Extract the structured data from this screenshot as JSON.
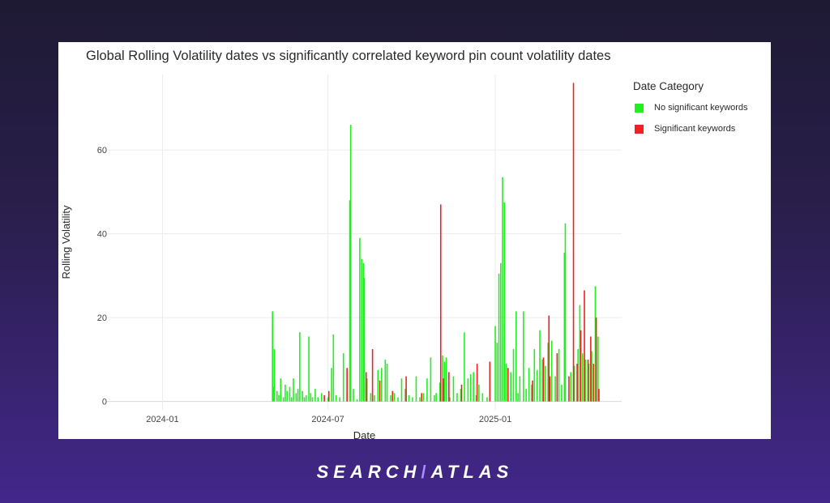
{
  "brand": {
    "logo_text": "SEARCH/ATLAS",
    "part1": "SEARCH",
    "slash": "/",
    "part2": "ATLAS"
  },
  "chart_data": {
    "type": "bar",
    "title": "Global Rolling Volatility dates vs significantly correlated keyword pin count volatility dates",
    "xlabel": "Date",
    "ylabel": "Rolling Volatility",
    "x_ticks": [
      "2024-01",
      "2024-07",
      "2025-01"
    ],
    "y_ticks": [
      0,
      20,
      40,
      60
    ],
    "xlim": [
      "2023-11-01",
      "2025-05-20"
    ],
    "ylim": [
      -2,
      78
    ],
    "grid": true,
    "legend": {
      "title": "Date Category",
      "placement": "right",
      "entries": [
        {
          "name": "No significant keywords",
          "color": "#22ee22"
        },
        {
          "name": "Significant keywords",
          "color": "#ee2222"
        }
      ]
    },
    "series": [
      {
        "name": "No significant keywords",
        "color": "#22ee22",
        "points": [
          [
            "2024-05-01",
            21.5
          ],
          [
            "2024-05-02",
            3.5
          ],
          [
            "2024-05-03",
            12.5
          ],
          [
            "2024-05-06",
            2.5
          ],
          [
            "2024-05-08",
            1.5
          ],
          [
            "2024-05-10",
            5.5
          ],
          [
            "2024-05-13",
            1.0
          ],
          [
            "2024-05-15",
            4.0
          ],
          [
            "2024-05-17",
            2.5
          ],
          [
            "2024-05-20",
            3.5
          ],
          [
            "2024-05-22",
            1.0
          ],
          [
            "2024-05-24",
            5.5
          ],
          [
            "2024-05-27",
            2.0
          ],
          [
            "2024-05-29",
            3.0
          ],
          [
            "2024-05-31",
            16.5
          ],
          [
            "2024-06-03",
            2.5
          ],
          [
            "2024-06-05",
            1.0
          ],
          [
            "2024-06-07",
            1.5
          ],
          [
            "2024-06-10",
            15.5
          ],
          [
            "2024-06-12",
            2.0
          ],
          [
            "2024-06-14",
            1.0
          ],
          [
            "2024-06-17",
            3.0
          ],
          [
            "2024-06-20",
            1.0
          ],
          [
            "2024-06-24",
            2.0
          ],
          [
            "2024-07-01",
            1.0
          ],
          [
            "2024-07-05",
            8.0
          ],
          [
            "2024-07-07",
            16.0
          ],
          [
            "2024-07-10",
            1.5
          ],
          [
            "2024-07-14",
            1.0
          ],
          [
            "2024-07-18",
            11.5
          ],
          [
            "2024-07-22",
            2.0
          ],
          [
            "2024-07-25",
            48.0
          ],
          [
            "2024-07-26",
            66.0
          ],
          [
            "2024-07-29",
            3.0
          ],
          [
            "2024-08-02",
            0.5
          ],
          [
            "2024-08-05",
            39.0
          ],
          [
            "2024-08-07",
            34.0
          ],
          [
            "2024-08-09",
            33.0
          ],
          [
            "2024-08-10",
            29.5
          ],
          [
            "2024-08-13",
            5.5
          ],
          [
            "2024-08-17",
            2.0
          ],
          [
            "2024-08-21",
            1.5
          ],
          [
            "2024-08-25",
            7.5
          ],
          [
            "2024-08-29",
            8.0
          ],
          [
            "2024-09-02",
            10.0
          ],
          [
            "2024-09-04",
            9.0
          ],
          [
            "2024-09-08",
            1.5
          ],
          [
            "2024-09-12",
            2.0
          ],
          [
            "2024-09-16",
            1.0
          ],
          [
            "2024-09-20",
            5.5
          ],
          [
            "2024-09-24",
            3.0
          ],
          [
            "2024-09-28",
            1.5
          ],
          [
            "2024-10-02",
            1.0
          ],
          [
            "2024-10-06",
            6.0
          ],
          [
            "2024-10-10",
            1.0
          ],
          [
            "2024-10-14",
            2.0
          ],
          [
            "2024-10-18",
            5.5
          ],
          [
            "2024-10-22",
            10.5
          ],
          [
            "2024-10-26",
            1.5
          ],
          [
            "2024-10-28",
            2.0
          ],
          [
            "2024-11-01",
            4.5
          ],
          [
            "2024-11-04",
            11.0
          ],
          [
            "2024-11-06",
            9.5
          ],
          [
            "2024-11-08",
            10.5
          ],
          [
            "2024-11-12",
            1.0
          ],
          [
            "2024-11-16",
            6.0
          ],
          [
            "2024-11-20",
            2.0
          ],
          [
            "2024-11-24",
            3.0
          ],
          [
            "2024-11-28",
            16.5
          ],
          [
            "2024-12-02",
            5.5
          ],
          [
            "2024-12-05",
            6.5
          ],
          [
            "2024-12-08",
            7.0
          ],
          [
            "2024-12-11",
            1.5
          ],
          [
            "2024-12-14",
            4.0
          ],
          [
            "2024-12-18",
            2.0
          ],
          [
            "2024-12-23",
            1.0
          ],
          [
            "2025-01-01",
            18.0
          ],
          [
            "2025-01-03",
            14.0
          ],
          [
            "2025-01-05",
            30.5
          ],
          [
            "2025-01-07",
            33.0
          ],
          [
            "2025-01-09",
            53.5
          ],
          [
            "2025-01-11",
            47.5
          ],
          [
            "2025-01-13",
            9.0
          ],
          [
            "2025-01-18",
            7.0
          ],
          [
            "2025-01-21",
            12.5
          ],
          [
            "2025-01-24",
            21.5
          ],
          [
            "2025-01-26",
            2.0
          ],
          [
            "2025-01-28",
            6.0
          ],
          [
            "2025-02-01",
            21.5
          ],
          [
            "2025-02-04",
            3.0
          ],
          [
            "2025-02-07",
            8.0
          ],
          [
            "2025-02-10",
            4.0
          ],
          [
            "2025-02-13",
            12.5
          ],
          [
            "2025-02-16",
            7.5
          ],
          [
            "2025-02-19",
            17.0
          ],
          [
            "2025-02-22",
            10.0
          ],
          [
            "2025-02-25",
            8.5
          ],
          [
            "2025-02-28",
            14.0
          ],
          [
            "2025-03-04",
            14.5
          ],
          [
            "2025-03-08",
            6.0
          ],
          [
            "2025-03-12",
            12.5
          ],
          [
            "2025-03-15",
            4.0
          ],
          [
            "2025-03-18",
            35.5
          ],
          [
            "2025-03-19",
            42.5
          ],
          [
            "2025-03-25",
            7.0
          ],
          [
            "2025-03-29",
            8.5
          ],
          [
            "2025-04-02",
            12.5
          ],
          [
            "2025-04-04",
            23.0
          ],
          [
            "2025-04-07",
            11.5
          ],
          [
            "2025-04-10",
            10.0
          ],
          [
            "2025-04-14",
            9.0
          ],
          [
            "2025-04-17",
            12.0
          ],
          [
            "2025-04-21",
            27.5
          ],
          [
            "2025-04-24",
            15.5
          ]
        ]
      },
      {
        "name": "Significant keywords",
        "color": "#ee2222",
        "points": [
          [
            "2024-06-27",
            1.5
          ],
          [
            "2024-07-02",
            2.5
          ],
          [
            "2024-07-22",
            8.0
          ],
          [
            "2024-08-12",
            7.0
          ],
          [
            "2024-08-19",
            12.5
          ],
          [
            "2024-08-27",
            5.0
          ],
          [
            "2024-09-10",
            2.5
          ],
          [
            "2024-09-25",
            6.0
          ],
          [
            "2024-10-12",
            2.0
          ],
          [
            "2024-11-02",
            47.0
          ],
          [
            "2024-11-05",
            5.5
          ],
          [
            "2024-11-11",
            7.0
          ],
          [
            "2024-11-25",
            4.0
          ],
          [
            "2024-12-12",
            9.0
          ],
          [
            "2024-12-26",
            9.5
          ],
          [
            "2025-01-15",
            8.0
          ],
          [
            "2025-02-11",
            5.0
          ],
          [
            "2025-02-23",
            10.5
          ],
          [
            "2025-03-01",
            20.5
          ],
          [
            "2025-03-02",
            6.0
          ],
          [
            "2025-03-10",
            11.5
          ],
          [
            "2025-03-23",
            6.0
          ],
          [
            "2025-03-28",
            76.0
          ],
          [
            "2025-04-01",
            9.0
          ],
          [
            "2025-04-05",
            17.0
          ],
          [
            "2025-04-09",
            26.5
          ],
          [
            "2025-04-13",
            10.0
          ],
          [
            "2025-04-16",
            15.5
          ],
          [
            "2025-04-19",
            9.0
          ],
          [
            "2025-04-22",
            20.0
          ],
          [
            "2025-04-25",
            3.0
          ]
        ]
      }
    ]
  }
}
